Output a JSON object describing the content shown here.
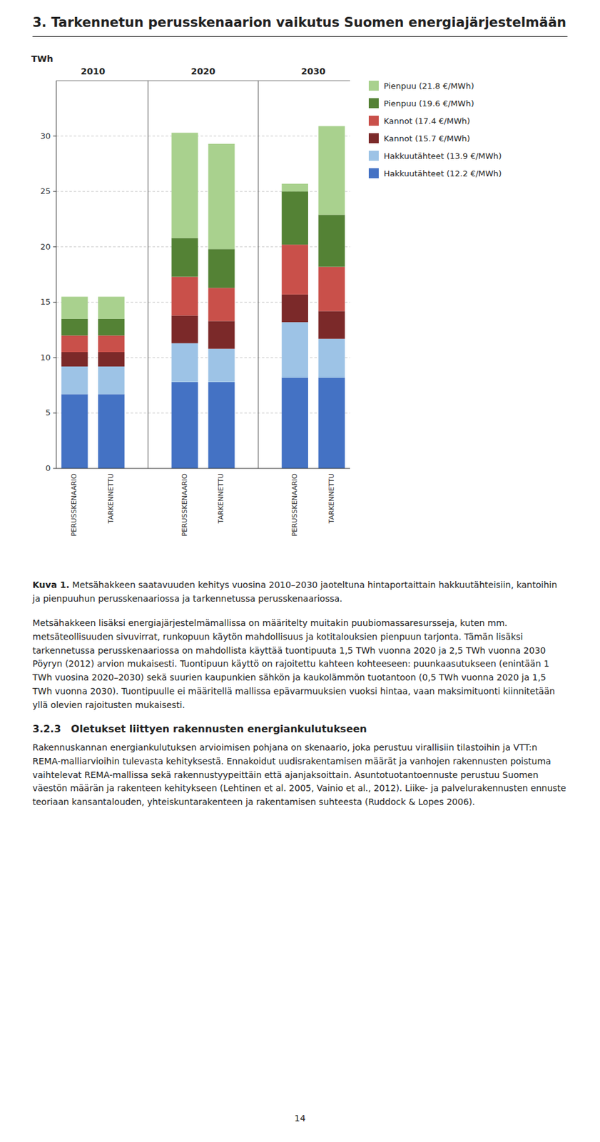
{
  "chart_data": {
    "type": "bar",
    "stacked": true,
    "y_label": "TWh",
    "groups": [
      "2010",
      "2020",
      "2030"
    ],
    "categories": [
      "PERUSSKENAARIO",
      "TARKENNETTU",
      "PERUSSKENAARIO",
      "TARKENNETTU",
      "PERUSSKENAARIO",
      "TARKENNETTU"
    ],
    "series": [
      {
        "name": "Hakkuutähteet (12.2 €/MWh)",
        "color": "#4472C4",
        "values": [
          6.7,
          6.7,
          7.8,
          7.8,
          8.2,
          8.2
        ]
      },
      {
        "name": "Hakkuutähteet (13.9 €/MWh)",
        "color": "#9DC3E6",
        "values": [
          2.5,
          2.5,
          3.5,
          3.0,
          5.0,
          3.5
        ]
      },
      {
        "name": "Kannot (15.7 €/MWh)",
        "color": "#7B2929",
        "values": [
          1.3,
          1.3,
          2.5,
          2.5,
          2.5,
          2.5
        ]
      },
      {
        "name": "Kannot (17.4 €/MWh)",
        "color": "#C9504A",
        "values": [
          1.5,
          1.5,
          3.5,
          3.0,
          4.5,
          4.0
        ]
      },
      {
        "name": "Pienpuu (19.6 €/MWh)",
        "color": "#548235",
        "values": [
          1.5,
          1.5,
          3.5,
          3.5,
          4.8,
          4.7
        ]
      },
      {
        "name": "Pienpuu (21.8 €/MWh)",
        "color": "#A9D18E",
        "values": [
          2.0,
          2.0,
          9.5,
          9.5,
          0.7,
          8.0
        ]
      }
    ],
    "ylim": [
      0,
      35
    ],
    "yticks": [
      0,
      5,
      10,
      15,
      20,
      25,
      30
    ],
    "grid": true,
    "legend": "right"
  },
  "page": {
    "title": "3. Tarkennetun perusskenaarion vaikutus Suomen energiajärjestelmään",
    "caption_bold": "Kuva 1.",
    "caption": " Metsähakkeen saatavuuden kehitys vuosina 2010–2030 jaoteltuna hintaportaittain hakkuutähteisiin, kantoihin ja pienpuuhun perusskenaariossa ja tarkennetussa perusskenaariossa.",
    "body_text": "Metsähakkeen lisäksi energiajärjestelmämallissa on määritelty muitakin puubiomassaresursseja, kuten mm. metsäteollisuuden sivuvirrat, runkopuun käytön mahdollisuus ja kotitalouksien pienpuun tarjonta. Tämän lisäksi tarkennetussa perusskenaariossa on mahdollista käyttää tuontipuuta 1,5 TWh vuonna 2020 ja 2,5 TWh vuonna 2030 Pöyryn (2012) arvion mukaisesti. Tuontipuun käyttö on rajoitettu kahteen kohteeseen: puunkaasutukseen (enintään 1 TWh vuosina 2020–2030) sekä suurien kaupunkien sähkön ja kaukolämmön tuotantoon (0,5 TWh vuonna 2020 ja 1,5 TWh vuonna 2030). Tuontipuulle ei määritellä mallissa epävarmuuksien vuoksi hintaa, vaan maksimituonti kiinnitetään yllä olevien rajoitusten mukaisesti.",
    "section_title": "3.2.3 Oletukset liittyen rakennusten energiankulutukseen",
    "body_text2": "Rakennuskannan energiankulutuksen arvioimisen pohjana on skenaario, joka perustuu virallisiin tilastoihin ja VTT:n REMA-malliarvioihin tulevasta kehityksestä. Ennakoidut uudisrakentamisen määrät ja vanhojen rakennusten poistuma vaihtelevat REMA-mallissa sekä rakennustyypeittäin että ajanjaksoittain. Asuntotuotantoennuste perustuu Suomen väestön määrän ja rakenteen kehitykseen (Lehtinen et al. 2005, Vainio et al., 2012). Liike- ja palvelurakennusten ennuste teoriaan kansantalouden, yhteiskuntarakenteen ja rakentamisen suhteesta (Ruddock & Lopes 2006).",
    "page_number": "14"
  }
}
